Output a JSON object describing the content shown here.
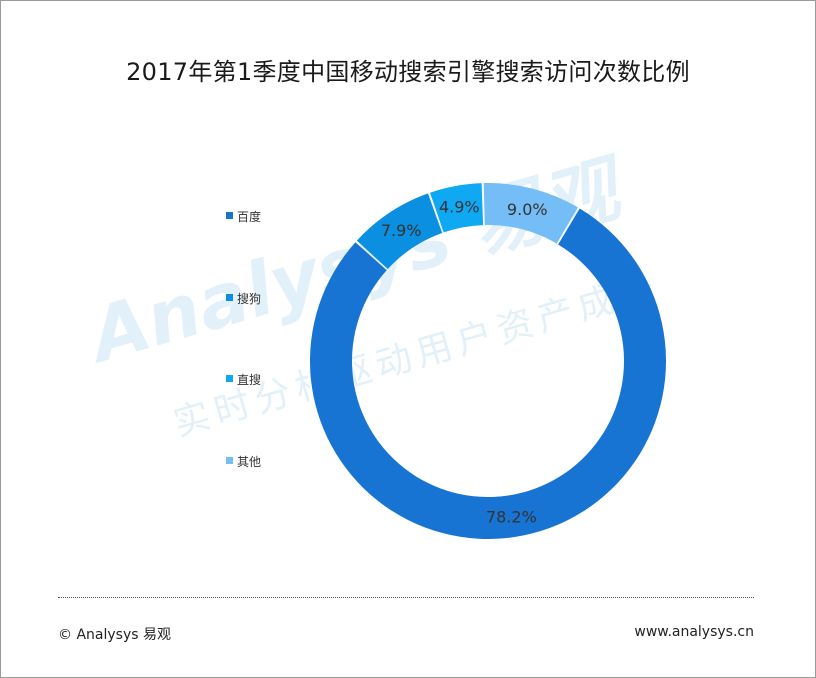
{
  "title": "2017年第1季度中国移动搜索引擎搜索访问次数比例",
  "chart_data": {
    "type": "pie",
    "title": "2017年第1季度中国移动搜索引擎搜索访问次数比例",
    "categories": [
      "百度",
      "搜狗",
      "直搜",
      "其他"
    ],
    "values": [
      78.2,
      7.9,
      4.9,
      9.0
    ],
    "labels": [
      "78.2%",
      "7.9%",
      "4.9%",
      "9.0%"
    ],
    "colors": [
      "#1874d2",
      "#0b8fe0",
      "#0fa9f3",
      "#74bdf6"
    ],
    "legend_position": "left"
  },
  "watermark": {
    "brand": "Analysys 易观",
    "slogan": "实时分析驱动用户资产成长"
  },
  "footer": {
    "copyright": "© Analysys 易观",
    "website": "www.analysys.cn"
  }
}
